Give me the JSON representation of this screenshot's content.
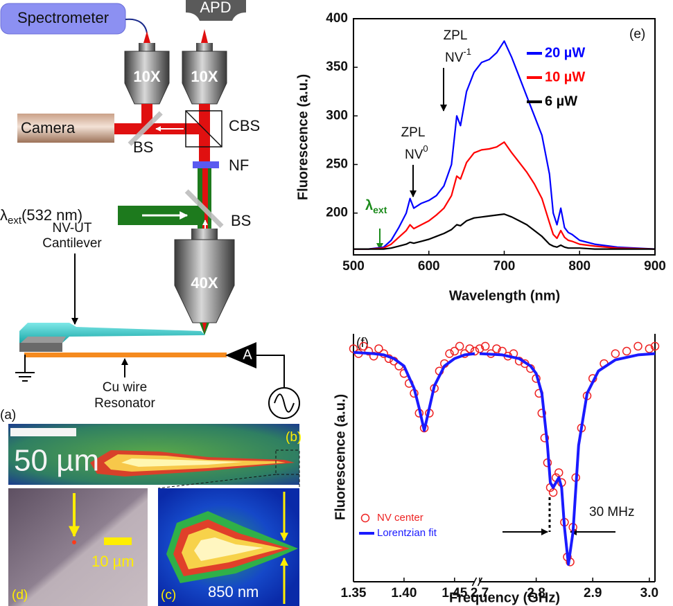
{
  "diagram": {
    "spectrometer": "Spectrometer",
    "apd": "APD",
    "objective_left": "10X",
    "objective_right": "10X",
    "camera": "Camera",
    "cbs": "CBS",
    "bs_camera": "BS",
    "nf": "NF",
    "laser": {
      "symbol": "λ",
      "sub": "ext",
      "text": "(532 nm)"
    },
    "bs_laser": "BS",
    "cantilever": [
      "NV-UT",
      "Cantilever"
    ],
    "objective_bottom": "40X",
    "amplifier": "A",
    "wire": [
      "Cu wire",
      "Resonator"
    ],
    "panel": "(a)"
  },
  "images": {
    "b": {
      "scale": "50 µm",
      "panel": "(b)"
    },
    "c": {
      "scale": "850 nm",
      "panel": "(c)"
    },
    "d": {
      "scale": "10 µm",
      "panel": "(d)"
    }
  },
  "chart_data": [
    {
      "type": "line",
      "xlabel": "Wavelength (nm)",
      "ylabel": "Fluorescence (a.u.)",
      "xlim": [
        500,
        900
      ],
      "xticks": [
        500,
        600,
        700,
        800,
        900
      ],
      "ylim": [
        157,
        400
      ],
      "yticks": [
        200,
        250,
        300,
        350,
        400
      ],
      "legend": "upper right",
      "annotations": [
        {
          "text": "ZPL"
        },
        {
          "text": "NV",
          "sup": "0"
        },
        {
          "text": "ZPL"
        },
        {
          "text": "NV",
          "sup": "-1"
        },
        {
          "text": "λ",
          "sub": "ext"
        },
        {
          "text": "(e)"
        }
      ],
      "x": [
        500,
        520,
        540,
        550,
        560,
        570,
        575,
        580,
        590,
        600,
        610,
        620,
        630,
        637,
        642,
        650,
        660,
        670,
        680,
        690,
        700,
        710,
        720,
        730,
        740,
        750,
        760,
        765,
        770,
        775,
        780,
        785,
        790,
        800,
        820,
        850,
        900
      ],
      "series": [
        {
          "name": "20 µW",
          "color": "#0000ff",
          "values": [
            163,
            163,
            165,
            172,
            185,
            200,
            215,
            205,
            210,
            213,
            218,
            228,
            250,
            300,
            290,
            325,
            345,
            355,
            358,
            365,
            377,
            360,
            340,
            320,
            300,
            280,
            240,
            200,
            188,
            205,
            185,
            180,
            178,
            172,
            168,
            165,
            163
          ]
        },
        {
          "name": "10 µW",
          "color": "#ff0000",
          "values": [
            163,
            163,
            164,
            168,
            175,
            182,
            188,
            184,
            188,
            192,
            198,
            205,
            218,
            238,
            235,
            252,
            262,
            265,
            266,
            268,
            273,
            262,
            252,
            242,
            230,
            215,
            190,
            178,
            174,
            182,
            175,
            172,
            171,
            168,
            166,
            164,
            163
          ]
        },
        {
          "name": "6 µW",
          "color": "#000000",
          "values": [
            163,
            163,
            163,
            164,
            166,
            168,
            170,
            169,
            171,
            173,
            176,
            179,
            183,
            188,
            187,
            192,
            195,
            196,
            197,
            198,
            199,
            196,
            192,
            188,
            182,
            176,
            168,
            166,
            165,
            167,
            165,
            164,
            164,
            164,
            163,
            163,
            163
          ]
        }
      ]
    },
    {
      "type": "scatter",
      "xlabel": "Frequency (GHz)",
      "ylabel": "Fluorescence (a.u.)",
      "ylim": [
        0,
        1
      ],
      "legend": "lower left",
      "annotations": [
        {
          "text": "(f)"
        },
        {
          "text": "30 MHz"
        }
      ],
      "x_segments": [
        {
          "xlim": [
            1.35,
            1.47
          ],
          "xticks": [
            1.35,
            {
              "value": 1.4,
              "label": "1.40"
            },
            1.45
          ]
        },
        {
          "xlim": [
            2.7,
            3.01
          ],
          "xticks": [
            2.7,
            2.8,
            2.9,
            {
              "value": 3,
              "label": "3.0"
            }
          ]
        }
      ],
      "series": [
        {
          "name": "NV center",
          "type": "scatter",
          "color": "#ee2222",
          "x": [
            1.35,
            1.355,
            1.36,
            1.365,
            1.37,
            1.375,
            1.38,
            1.385,
            1.39,
            1.395,
            1.4,
            1.405,
            1.41,
            1.415,
            1.42,
            1.425,
            1.43,
            1.435,
            1.44,
            1.445,
            1.45,
            1.455,
            1.46,
            1.465,
            1.47,
            2.7,
            2.71,
            2.72,
            2.73,
            2.74,
            2.75,
            2.76,
            2.77,
            2.78,
            2.79,
            2.8,
            2.805,
            2.81,
            2.815,
            2.82,
            2.825,
            2.83,
            2.835,
            2.84,
            2.845,
            2.85,
            2.855,
            2.86,
            2.865,
            2.87,
            2.88,
            2.89,
            2.9,
            2.92,
            2.94,
            2.96,
            2.98,
            3,
            3.01
          ],
          "values": [
            0.94,
            0.92,
            0.95,
            0.93,
            0.91,
            0.94,
            0.92,
            0.9,
            0.89,
            0.87,
            0.84,
            0.8,
            0.76,
            0.68,
            0.62,
            0.68,
            0.78,
            0.85,
            0.88,
            0.92,
            0.93,
            0.95,
            0.92,
            0.94,
            0.93,
            0.94,
            0.95,
            0.92,
            0.94,
            0.93,
            0.91,
            0.92,
            0.89,
            0.88,
            0.86,
            0.82,
            0.76,
            0.68,
            0.58,
            0.48,
            0.38,
            0.36,
            0.42,
            0.44,
            0.4,
            0.24,
            0.1,
            0.08,
            0.22,
            0.42,
            0.62,
            0.75,
            0.82,
            0.88,
            0.92,
            0.93,
            0.95,
            0.94,
            0.95
          ]
        },
        {
          "name": "Lorentzian fit",
          "type": "line",
          "color": "#1a1aff",
          "x": [
            1.35,
            1.37,
            1.38,
            1.39,
            1.4,
            1.41,
            1.415,
            1.42,
            1.425,
            1.43,
            1.44,
            1.45,
            1.46,
            1.47,
            2.7,
            2.74,
            2.77,
            2.79,
            2.8,
            2.81,
            2.82,
            2.825,
            2.83,
            2.84,
            2.845,
            2.85,
            2.857,
            2.865,
            2.875,
            2.89,
            2.91,
            2.94,
            2.98,
            3.01
          ],
          "values": [
            0.925,
            0.92,
            0.915,
            0.9,
            0.87,
            0.78,
            0.7,
            0.61,
            0.7,
            0.79,
            0.87,
            0.9,
            0.915,
            0.92,
            0.92,
            0.915,
            0.9,
            0.87,
            0.84,
            0.76,
            0.55,
            0.4,
            0.38,
            0.42,
            0.38,
            0.22,
            0.07,
            0.2,
            0.55,
            0.76,
            0.85,
            0.895,
            0.915,
            0.92
          ]
        }
      ]
    }
  ]
}
